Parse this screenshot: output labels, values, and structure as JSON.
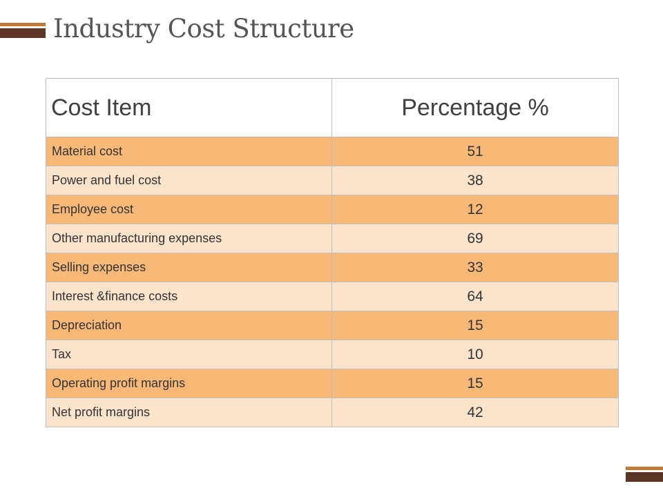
{
  "slide": {
    "title": "Industry Cost Structure"
  },
  "table": {
    "headers": {
      "item": "Cost Item",
      "percentage": "Percentage %"
    },
    "rows": [
      {
        "item": "Material cost",
        "percentage": "51"
      },
      {
        "item": "Power and fuel cost",
        "percentage": "38"
      },
      {
        "item": "Employee cost",
        "percentage": "12"
      },
      {
        "item": "Other manufacturing expenses",
        "percentage": "69"
      },
      {
        "item": "Selling expenses",
        "percentage": "33"
      },
      {
        "item": "Interest &finance costs",
        "percentage": "64"
      },
      {
        "item": "Depreciation",
        "percentage": "15"
      },
      {
        "item": "Tax",
        "percentage": "10"
      },
      {
        "item": "Operating profit margins",
        "percentage": "15"
      },
      {
        "item": "Net profit margins",
        "percentage": "42"
      }
    ]
  },
  "colors": {
    "accent_light": "#c27b36",
    "accent_dark": "#5a3526",
    "row_dark": "#f8b878",
    "row_light": "#fce3cc"
  }
}
